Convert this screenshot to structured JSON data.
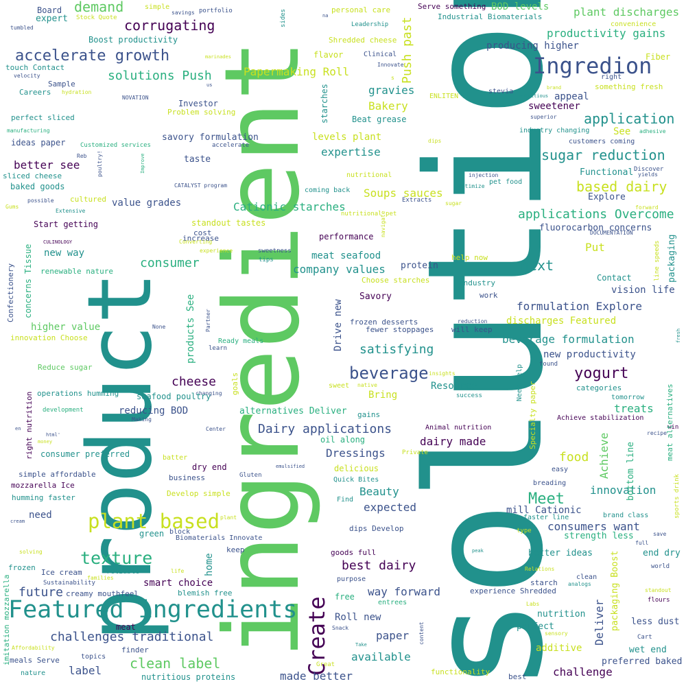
{
  "palette": {
    "light_green": "#5ec962",
    "teal": "#21918c",
    "yellow": "#c8e020",
    "blue": "#3b528b",
    "dark_purple": "#440154",
    "sea_green": "#29af7f",
    "lime": "#addc30"
  },
  "words": [
    "solution",
    "ingredient",
    "product",
    "Featured ingredients",
    "Ingredion",
    "plant based",
    "Create",
    "accelerate growth",
    "texture",
    "corrugating",
    "demand",
    "beverage",
    "application",
    "sugar reduction",
    "clean label",
    "challenges traditional",
    "based dairy",
    "Dairy applications",
    "yogurt",
    "Meet",
    "consumer",
    "solutions Push",
    "applications Overcome",
    "Push past",
    "cheese",
    "best dairy",
    "next",
    "future",
    "satisfying",
    "Cationic starches",
    "Papermaking Roll",
    "productivity gains",
    "plant discharges",
    "beverage formulation",
    "formulation Explore",
    "company values",
    "dairy made",
    "food",
    "Dressings",
    "producing higher",
    "better see",
    "value grades",
    "expertise",
    "Soups sauces",
    "gravies",
    "Bakery",
    "sweetener",
    "BOD levels",
    "levels plant",
    "meat seafood",
    "consumers want",
    "innovation",
    "Achieve",
    "Deliver",
    "paper",
    "label",
    "made better",
    "available",
    "challenge",
    "way forward",
    "new productivity",
    "treats",
    "Resource",
    "home",
    "products See",
    "Drive new",
    "Beauty",
    "expected",
    "Roll new",
    "higher value",
    "new way",
    "reducing BOD",
    "mill Cationic",
    "discharges Featured",
    "vision life",
    "Put",
    "See",
    "appeal",
    "Bring",
    "alternatives Deliver",
    "additive",
    "smart choice",
    "need",
    "Savory",
    "fluorocarbon concerns",
    "nutrition",
    "perfect",
    "less dust",
    "preferred baked",
    "wet end",
    "end dry",
    "better ideas",
    "strength less",
    "packaging",
    "packaging Boost",
    "bottom line",
    "Explore",
    "Functional",
    "taste",
    "savory formulation",
    "Investor",
    "Problem solving",
    "Boost productivity",
    "personal care",
    "Shredded cheese",
    "Serve something",
    "Industrial Biomaterials",
    "protein",
    "performance",
    "starches",
    "flavor",
    "Beat grease",
    "frozen desserts",
    "fewer stoppages",
    "will keep",
    "industry",
    "work",
    "Contact",
    "Start getting",
    "consumer preferred",
    "cost",
    "increase",
    "Sample",
    "Careers",
    "touch Contact",
    "expert",
    "Board",
    "simple affordable",
    "mozzarella Ice",
    "humming faster",
    "ideas paper",
    "perfect sliced",
    "baked goods",
    "sliced cheese",
    "cultured",
    "standout tastes",
    "dry end",
    "business",
    "Develop simple",
    "green",
    "block",
    "Biomaterials Innovate",
    "keep",
    "goods full",
    "dips Develop",
    "Ice cream",
    "creamy mouthfeel",
    "blemish free",
    "meat",
    "finder",
    "topics",
    "nutritious proteins",
    "meals Serve",
    "nature",
    "Great",
    "functionality",
    "best",
    "purpose",
    "free",
    "entrees",
    "oil along",
    "gains",
    "delicious",
    "Quick Bites",
    "Find",
    "Animal nutrition",
    "Achieve stabilization",
    "categories",
    "tomorrow",
    "Specialty paper",
    "Need help",
    "found",
    "success",
    "easy",
    "breading",
    "brand class",
    "faster line",
    "type",
    "clean",
    "starch",
    "experience Shredded",
    "Cart",
    "flours",
    "world",
    "standout",
    "analogs",
    "sensory",
    "recipe",
    "win",
    "save",
    "full",
    "fresh",
    "sports drink",
    "meat alternatives",
    "line speeds",
    "nutritional",
    "DOCUMENTATION",
    "injection",
    "Optimize",
    "Extracts",
    "sugar",
    "pet food",
    "Discover",
    "yields",
    "forward",
    "customers coming",
    "industry changing",
    "adhesive",
    "superior",
    "right",
    "something fresh",
    "convenience",
    "Fiber",
    "stevia",
    "nutritious",
    "brand",
    "ENLITEN",
    "Innovate",
    "Clinical",
    "Leadership",
    "sides",
    "portfolio",
    "savings",
    "simple",
    "Stock Quote",
    "tumbled",
    "velocity",
    "hydration",
    "NOVATION",
    "manufacturing",
    "Customized services",
    "Reb",
    "Improve",
    "poultry!",
    "accelerate",
    "CATALYST program",
    "coming back",
    "nutritional pet",
    "dips",
    "possible",
    "Gums",
    "Extensive",
    "CULINOLOGY",
    "Converting",
    "experience",
    "sweetness",
    "tips",
    "navigate",
    "renewable nature",
    "concerns Tissue",
    "Confectionery",
    "Choose starches",
    "help now",
    "reduction",
    "innovation Choose",
    "None",
    "Partner",
    "learn",
    "Ready meals",
    "insights",
    "native",
    "sweet",
    "goals",
    "changing",
    "Making",
    "Center",
    "development",
    "operations humming",
    "seafood poultry",
    "Reduce sugar",
    "right nutrition",
    "en",
    "html'",
    "money",
    "batter",
    "Private",
    "emulsified",
    "Gluten",
    "plant",
    "Relations",
    "peak",
    "life",
    "reliable",
    "families",
    "Sustainability",
    "frozen",
    "solving",
    "cream",
    "imitation mozzarella",
    "Affordability",
    "Labs",
    "content",
    "Snack",
    "Take",
    "us",
    "marinades",
    "na",
    "s"
  ]
}
